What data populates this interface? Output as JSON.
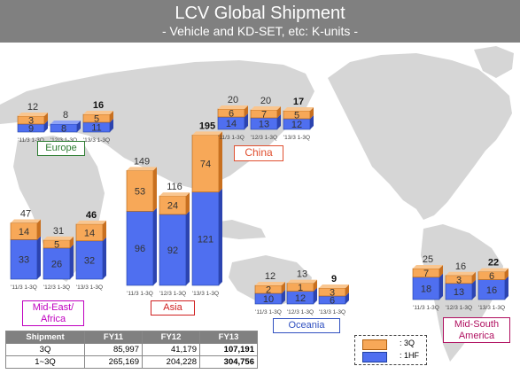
{
  "title": "LCV Global Shipment",
  "subtitle": "- Vehicle and KD-SET, etc: K-units -",
  "colors": {
    "hf1": "#4f6ff0",
    "q3": "#f7a858",
    "map": "#d6d6d6",
    "title_bg": "#808080"
  },
  "chart_data": {
    "type": "bar",
    "stacked": true,
    "series_names": [
      "1HF",
      "3Q"
    ],
    "regions": [
      {
        "name": "Europe",
        "categories": [
          "'11/3 1-3Q",
          "'12/3 1-3Q",
          "'13/3 1-3Q"
        ],
        "hf1": [
          9,
          8,
          11
        ],
        "q3": [
          3,
          0,
          5
        ],
        "totals": [
          12,
          8,
          16
        ]
      },
      {
        "name": "Mid-East/ Africa",
        "categories": [
          "'11/3 1-3Q",
          "'12/3 1-3Q",
          "'13/3 1-3Q"
        ],
        "hf1": [
          33,
          26,
          32
        ],
        "q3": [
          14,
          5,
          14
        ],
        "totals": [
          47,
          31,
          46
        ]
      },
      {
        "name": "Asia",
        "categories": [
          "'11/3 1-3Q",
          "'12/3 1-3Q",
          "'13/3 1-3Q"
        ],
        "hf1": [
          96,
          92,
          121
        ],
        "q3": [
          53,
          24,
          74
        ],
        "totals": [
          149,
          116,
          195
        ]
      },
      {
        "name": "China",
        "categories": [
          "'11/3 1-3Q",
          "'12/3 1-3Q",
          "'13/3 1-3Q"
        ],
        "hf1": [
          14,
          13,
          12
        ],
        "q3": [
          6,
          7,
          5
        ],
        "totals": [
          20,
          20,
          17
        ]
      },
      {
        "name": "Oceania",
        "categories": [
          "'11/3 1-3Q",
          "'12/3 1-3Q",
          "'13/3 1-3Q"
        ],
        "hf1": [
          10,
          12,
          6
        ],
        "q3": [
          2,
          1,
          3
        ],
        "totals": [
          12,
          13,
          9
        ]
      },
      {
        "name": "Mid-South America",
        "categories": [
          "'11/3 1-3Q",
          "'12/3 1-3Q",
          "'13/3 1-3Q"
        ],
        "hf1": [
          18,
          13,
          16
        ],
        "q3": [
          7,
          3,
          6
        ],
        "totals": [
          25,
          16,
          22
        ]
      }
    ],
    "table": {
      "headers": [
        "Shipment",
        "FY11",
        "FY12",
        "FY13"
      ],
      "rows": [
        [
          "3Q",
          "85,997",
          "41,179",
          "107,191"
        ],
        [
          "1~3Q",
          "265,169",
          "204,228",
          "304,756"
        ]
      ]
    },
    "legend": [
      {
        "label": ": 3Q",
        "color": "#f7a858"
      },
      {
        "label": ": 1HF",
        "color": "#4f6ff0"
      }
    ]
  }
}
